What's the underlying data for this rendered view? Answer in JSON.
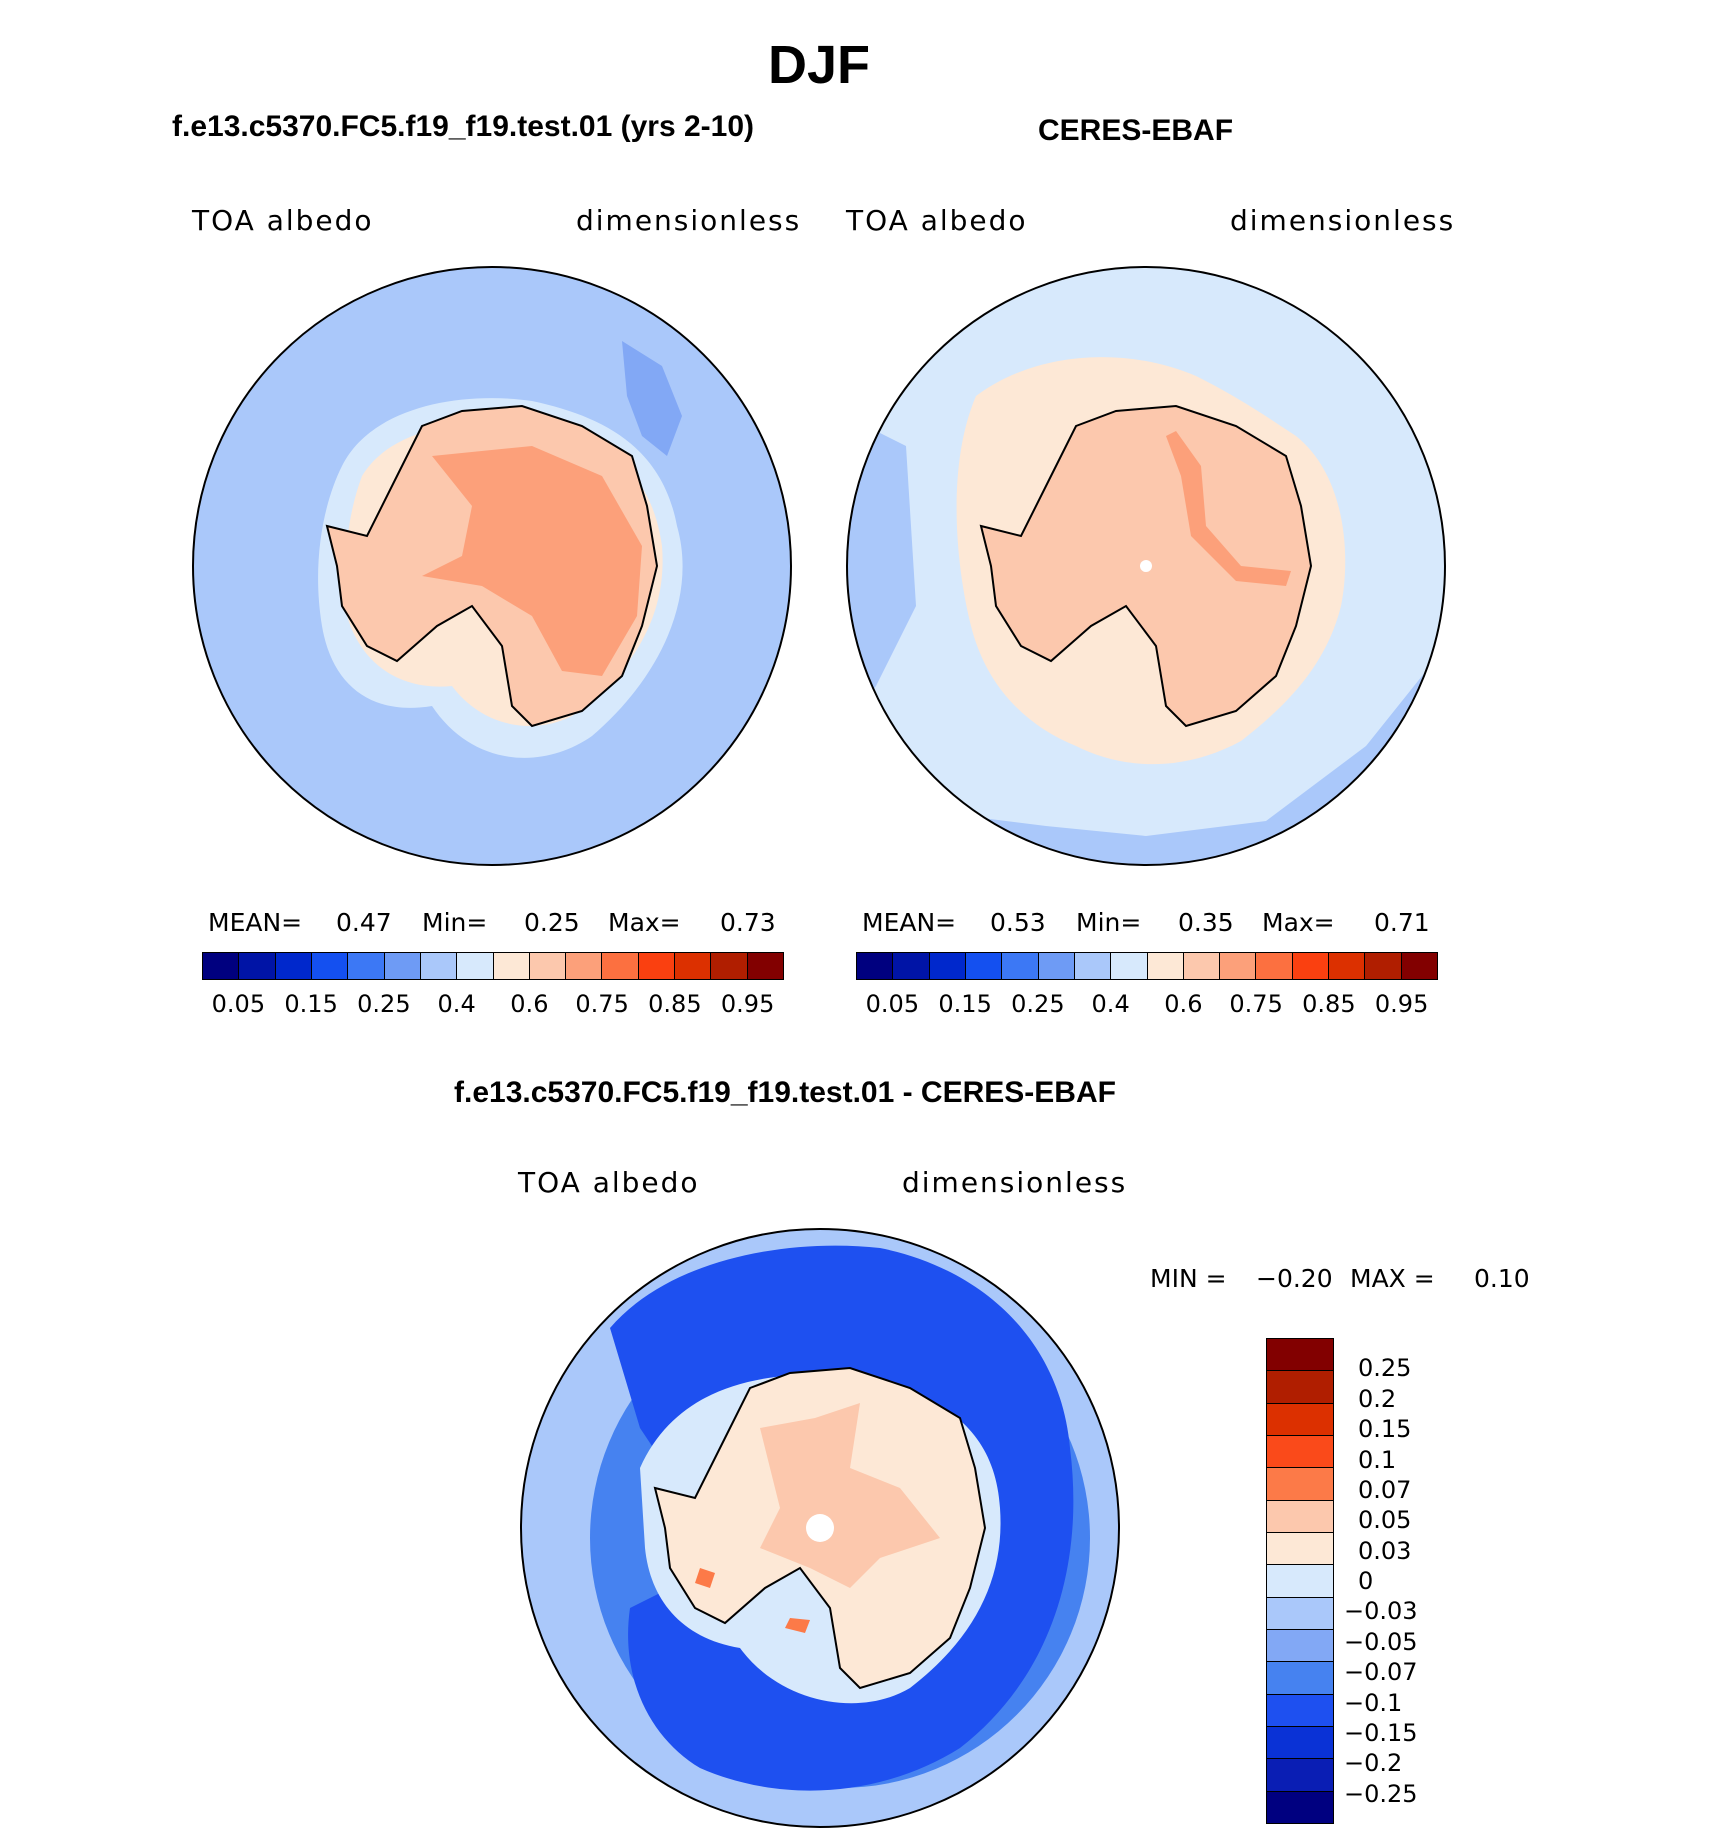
{
  "main_title": "DJF",
  "panels": [
    {
      "title": "f.e13.c5370.FC5.f19_f19.test.01 (yrs 2-10)",
      "left_label": "TOA albedo",
      "right_label": "dimensionless",
      "stats": {
        "mean_label": "MEAN=",
        "mean": "0.47",
        "min_label": "Min=",
        "min": "0.25",
        "max_label": "Max=",
        "max": "0.73"
      }
    },
    {
      "title": "CERES-EBAF",
      "left_label": "TOA albedo",
      "right_label": "dimensionless",
      "stats": {
        "mean_label": "MEAN=",
        "mean": "0.53",
        "min_label": "Min=",
        "min": "0.35",
        "max_label": "Max=",
        "max": "0.71"
      }
    }
  ],
  "diff_panel": {
    "title": "f.e13.c5370.FC5.f19_f19.test.01 - CERES-EBAF",
    "left_label": "TOA albedo",
    "right_label": "dimensionless",
    "minmax": {
      "min_label": "MIN =",
      "min": "−0.20",
      "max_label": "MAX =",
      "max": "0.10"
    }
  },
  "abs_colorbar": {
    "colors": [
      "#00007f",
      "#0014a6",
      "#0028cc",
      "#1450f0",
      "#3c78f5",
      "#6e9bf5",
      "#aac8fa",
      "#d7e9fc",
      "#fde8d6",
      "#fcc8ad",
      "#fca07a",
      "#fc7040",
      "#fa4010",
      "#dc3000",
      "#b01e00",
      "#820000"
    ],
    "tick_labels": [
      "0.05",
      "0.15",
      "0.25",
      "0.4",
      "0.6",
      "0.75",
      "0.85",
      "0.95"
    ]
  },
  "diff_colorbar": {
    "colors": [
      "#820000",
      "#b01e00",
      "#dc3000",
      "#fa4a1a",
      "#fc7a48",
      "#fcc8ad",
      "#fde8d6",
      "#d7e9fc",
      "#aac8fa",
      "#82a8f5",
      "#4682f0",
      "#1e50f0",
      "#0a32d6",
      "#0a1eb4",
      "#000080"
    ],
    "tick_labels": [
      "0.25",
      "0.2",
      "0.15",
      "0.1",
      "0.07",
      "0.05",
      "0.03",
      "0",
      "−0.03",
      "−0.05",
      "−0.07",
      "−0.1",
      "−0.15",
      "−0.2",
      "−0.25"
    ]
  },
  "map_colors": {
    "model_ocean": "#aac8fa",
    "model_shelf": "#d7e9fc",
    "model_coast": "#fde8d6",
    "model_land": "#fcc8ad",
    "model_core": "#fca07a",
    "model_patch": "#82a8f5",
    "obs_ocean": "#d7e9fc",
    "obs_outer": "#aac8fa",
    "obs_ice": "#fde8d6",
    "obs_land": "#fcc8ad",
    "obs_ridge": "#fca07a",
    "diff_outer": "#aac8fa",
    "diff_mid": "#4682f0",
    "diff_deep": "#1e50f0",
    "diff_shelf": "#d7e9fc",
    "diff_land": "#fde8d6",
    "diff_pos": "#fcc8ad",
    "diff_hot": "#fc7a48"
  }
}
